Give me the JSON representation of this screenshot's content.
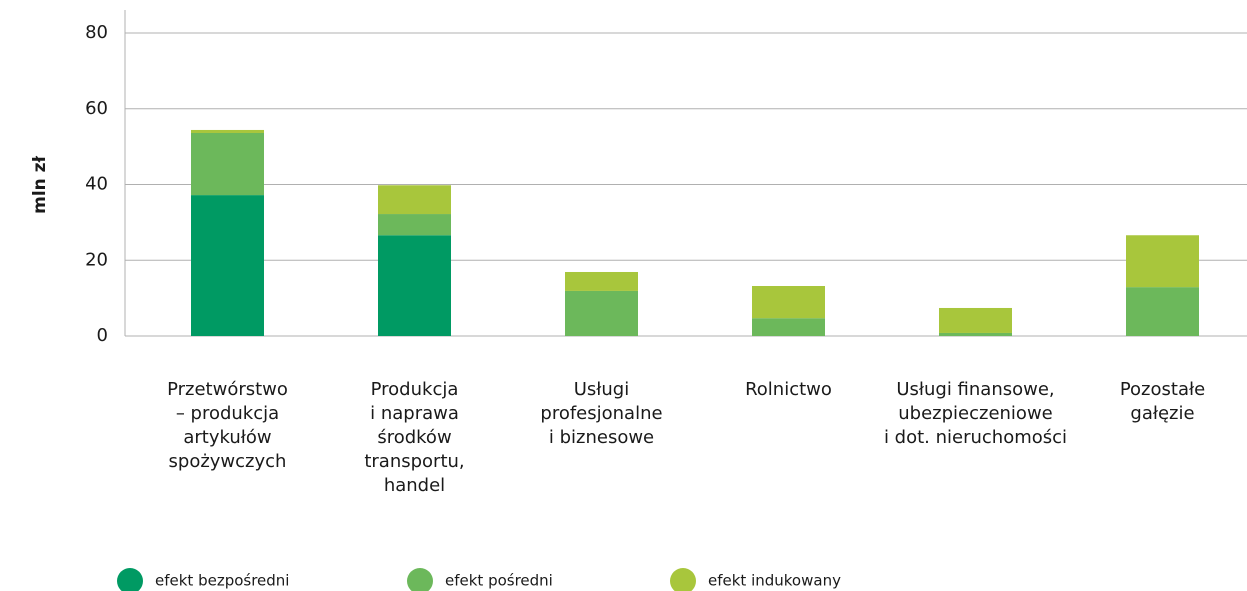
{
  "chart_data": {
    "type": "stacked_bar",
    "ylabel": "mln zł",
    "categories": [
      [
        "Przetwórstwo",
        "– produkcja",
        "artykułów",
        "spożywczych"
      ],
      [
        "Produkcja",
        "i naprawa",
        "środków",
        "transportu,",
        "handel"
      ],
      [
        "Usługi",
        "profesjonalne",
        "i biznesowe"
      ],
      [
        "Rolnictwo"
      ],
      [
        "Usługi finansowe,",
        "ubezpieczeniowe",
        "i dot. nieruchomości"
      ],
      [
        "Pozostałe",
        "gałęzie"
      ]
    ],
    "series": [
      {
        "name": "efekt bezpośredni",
        "color": "#009a63",
        "values": [
          37.2,
          26.6,
          0,
          0,
          0,
          0
        ]
      },
      {
        "name": "efekt pośredni",
        "color": "#6cb85b",
        "values": [
          16.4,
          5.6,
          11.9,
          4.7,
          0.8,
          12.9
        ]
      },
      {
        "name": "efekt indukowany",
        "color": "#a8c63c",
        "values": [
          0.8,
          7.6,
          5.0,
          8.5,
          6.6,
          13.7
        ]
      }
    ],
    "ylim": [
      0,
      80
    ],
    "yticks": [
      0,
      20,
      40,
      60,
      80
    ],
    "grid": true
  }
}
